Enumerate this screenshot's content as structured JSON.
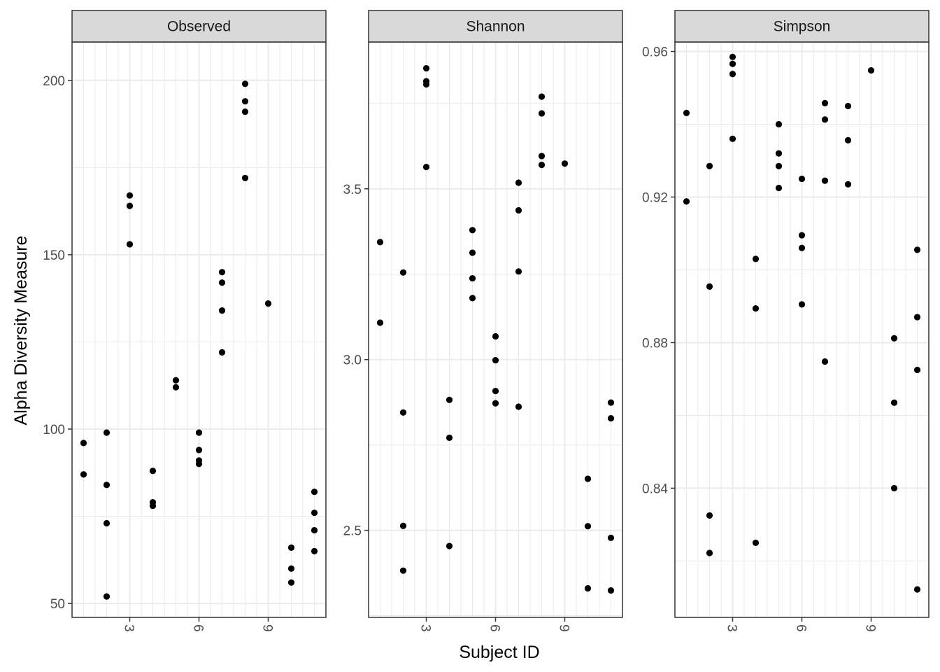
{
  "chart_data": {
    "type": "scatter",
    "xlabel": "Subject ID",
    "ylabel": "Alpha Diversity Measure",
    "x_ticks": [
      3,
      6,
      9
    ],
    "x_range": [
      0.5,
      11.5
    ],
    "grid": true,
    "point_color": "#000000",
    "strip_fill": "#d9d9d9",
    "grid_color": "#ebebeb",
    "facets": [
      {
        "title": "Observed",
        "ylim": [
          46,
          211
        ],
        "y_ticks": [
          50,
          100,
          150,
          200
        ],
        "points": [
          {
            "x": 1,
            "y": 96
          },
          {
            "x": 1,
            "y": 87
          },
          {
            "x": 2,
            "y": 99
          },
          {
            "x": 2,
            "y": 84
          },
          {
            "x": 2,
            "y": 73
          },
          {
            "x": 2,
            "y": 52
          },
          {
            "x": 3,
            "y": 167
          },
          {
            "x": 3,
            "y": 164
          },
          {
            "x": 3,
            "y": 153
          },
          {
            "x": 4,
            "y": 88
          },
          {
            "x": 4,
            "y": 79
          },
          {
            "x": 4,
            "y": 78
          },
          {
            "x": 5,
            "y": 114
          },
          {
            "x": 5,
            "y": 112
          },
          {
            "x": 6,
            "y": 99
          },
          {
            "x": 6,
            "y": 94
          },
          {
            "x": 6,
            "y": 91
          },
          {
            "x": 6,
            "y": 90
          },
          {
            "x": 7,
            "y": 145
          },
          {
            "x": 7,
            "y": 142
          },
          {
            "x": 7,
            "y": 134
          },
          {
            "x": 7,
            "y": 122
          },
          {
            "x": 8,
            "y": 199
          },
          {
            "x": 8,
            "y": 194
          },
          {
            "x": 8,
            "y": 191
          },
          {
            "x": 8,
            "y": 172
          },
          {
            "x": 9,
            "y": 136
          },
          {
            "x": 10,
            "y": 66
          },
          {
            "x": 10,
            "y": 60
          },
          {
            "x": 10,
            "y": 56
          },
          {
            "x": 11,
            "y": 82
          },
          {
            "x": 11,
            "y": 76
          },
          {
            "x": 11,
            "y": 71
          },
          {
            "x": 11,
            "y": 65
          }
        ]
      },
      {
        "title": "Shannon",
        "ylim": [
          2.245,
          3.93
        ],
        "y_ticks": [
          2.5,
          3.0,
          3.5
        ],
        "y_tick_labels": [
          "2.5",
          "3.0",
          "3.5"
        ],
        "points": [
          {
            "x": 1,
            "y": 3.344
          },
          {
            "x": 1,
            "y": 3.108
          },
          {
            "x": 2,
            "y": 3.255
          },
          {
            "x": 2,
            "y": 2.845
          },
          {
            "x": 2,
            "y": 2.513
          },
          {
            "x": 2,
            "y": 2.382
          },
          {
            "x": 3,
            "y": 3.853
          },
          {
            "x": 3,
            "y": 3.815
          },
          {
            "x": 3,
            "y": 3.806
          },
          {
            "x": 3,
            "y": 3.564
          },
          {
            "x": 4,
            "y": 2.882
          },
          {
            "x": 4,
            "y": 2.771
          },
          {
            "x": 4,
            "y": 2.454
          },
          {
            "x": 5,
            "y": 3.379
          },
          {
            "x": 5,
            "y": 3.313
          },
          {
            "x": 5,
            "y": 3.238
          },
          {
            "x": 5,
            "y": 3.18
          },
          {
            "x": 6,
            "y": 3.068
          },
          {
            "x": 6,
            "y": 2.998
          },
          {
            "x": 6,
            "y": 2.908
          },
          {
            "x": 6,
            "y": 2.872
          },
          {
            "x": 7,
            "y": 3.518
          },
          {
            "x": 7,
            "y": 3.437
          },
          {
            "x": 7,
            "y": 3.258
          },
          {
            "x": 7,
            "y": 2.862
          },
          {
            "x": 8,
            "y": 3.77
          },
          {
            "x": 8,
            "y": 3.721
          },
          {
            "x": 8,
            "y": 3.596
          },
          {
            "x": 8,
            "y": 3.57
          },
          {
            "x": 9,
            "y": 3.574
          },
          {
            "x": 10,
            "y": 2.651
          },
          {
            "x": 10,
            "y": 2.512
          },
          {
            "x": 10,
            "y": 2.33
          },
          {
            "x": 11,
            "y": 2.874
          },
          {
            "x": 11,
            "y": 2.828
          },
          {
            "x": 11,
            "y": 2.478
          },
          {
            "x": 11,
            "y": 2.324
          }
        ]
      },
      {
        "title": "Simpson",
        "ylim": [
          0.8045,
          0.9626
        ],
        "y_ticks": [
          0.84,
          0.88,
          0.92,
          0.96
        ],
        "y_tick_labels": [
          "0.84",
          "0.88",
          "0.92",
          "0.96"
        ],
        "points": [
          {
            "x": 1,
            "y": 0.9431
          },
          {
            "x": 1,
            "y": 0.9188
          },
          {
            "x": 2,
            "y": 0.9285
          },
          {
            "x": 2,
            "y": 0.8954
          },
          {
            "x": 2,
            "y": 0.8325
          },
          {
            "x": 2,
            "y": 0.8222
          },
          {
            "x": 3,
            "y": 0.9585
          },
          {
            "x": 3,
            "y": 0.9566
          },
          {
            "x": 3,
            "y": 0.9538
          },
          {
            "x": 3,
            "y": 0.936
          },
          {
            "x": 4,
            "y": 0.903
          },
          {
            "x": 4,
            "y": 0.8894
          },
          {
            "x": 4,
            "y": 0.825
          },
          {
            "x": 5,
            "y": 0.94
          },
          {
            "x": 5,
            "y": 0.932
          },
          {
            "x": 5,
            "y": 0.9285
          },
          {
            "x": 5,
            "y": 0.9225
          },
          {
            "x": 6,
            "y": 0.925
          },
          {
            "x": 6,
            "y": 0.9095
          },
          {
            "x": 6,
            "y": 0.906
          },
          {
            "x": 6,
            "y": 0.8905
          },
          {
            "x": 7,
            "y": 0.9458
          },
          {
            "x": 7,
            "y": 0.9413
          },
          {
            "x": 7,
            "y": 0.9245
          },
          {
            "x": 7,
            "y": 0.8748
          },
          {
            "x": 8,
            "y": 0.945
          },
          {
            "x": 8,
            "y": 0.9356
          },
          {
            "x": 8,
            "y": 0.9235
          },
          {
            "x": 9,
            "y": 0.9548
          },
          {
            "x": 10,
            "y": 0.8812
          },
          {
            "x": 10,
            "y": 0.8635
          },
          {
            "x": 10,
            "y": 0.84
          },
          {
            "x": 11,
            "y": 0.9055
          },
          {
            "x": 11,
            "y": 0.887
          },
          {
            "x": 11,
            "y": 0.8725
          },
          {
            "x": 11,
            "y": 0.8122
          }
        ]
      }
    ]
  }
}
